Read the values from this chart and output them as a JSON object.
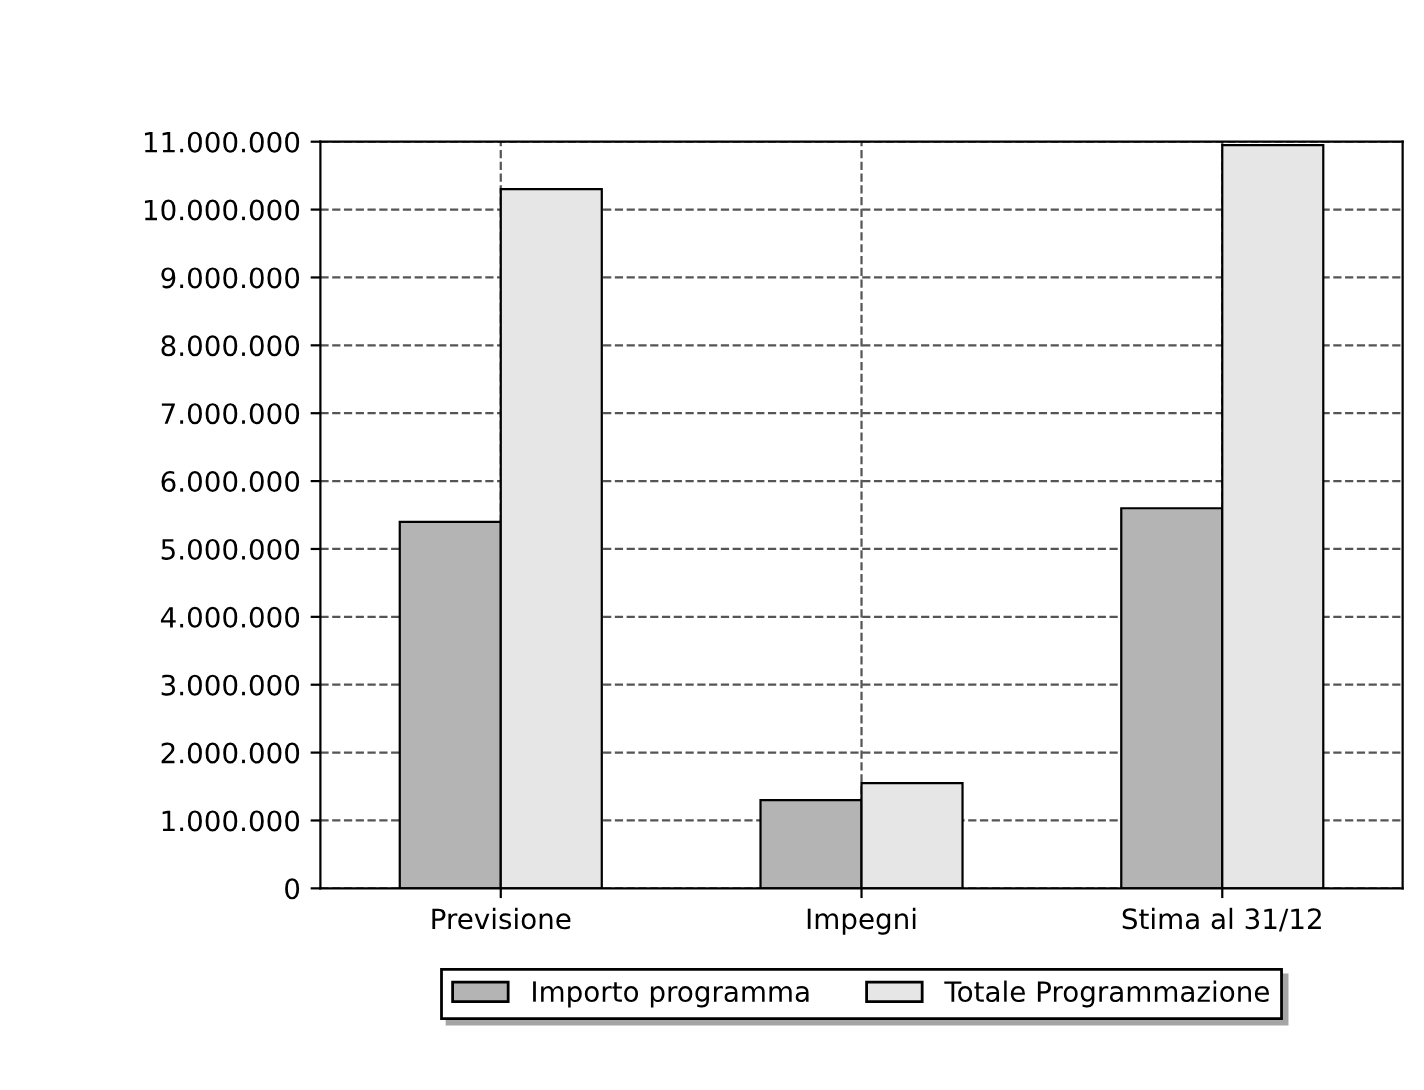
{
  "chart_data": {
    "type": "bar",
    "categories": [
      "Previsione",
      "Impegni",
      "Stima al 31/12"
    ],
    "series": [
      {
        "name": "Importo programma",
        "color": "#b4b4b4",
        "values": [
          5400000,
          1300000,
          5600000
        ]
      },
      {
        "name": "Totale Programmazione",
        "color": "#e6e6e6",
        "values": [
          10300000,
          1550000,
          10950000
        ]
      }
    ],
    "ylim": [
      0,
      11000000
    ],
    "yticks": [
      {
        "value": 0,
        "label": "0"
      },
      {
        "value": 1000000,
        "label": "1.000.000"
      },
      {
        "value": 2000000,
        "label": "2.000.000"
      },
      {
        "value": 3000000,
        "label": "3.000.000"
      },
      {
        "value": 4000000,
        "label": "4.000.000"
      },
      {
        "value": 5000000,
        "label": "5.000.000"
      },
      {
        "value": 6000000,
        "label": "6.000.000"
      },
      {
        "value": 7000000,
        "label": "7.000.000"
      },
      {
        "value": 8000000,
        "label": "8.000.000"
      },
      {
        "value": 9000000,
        "label": "9.000.000"
      },
      {
        "value": 10000000,
        "label": "10.000.000"
      },
      {
        "value": 11000000,
        "label": "11.000.000"
      }
    ],
    "grid": true,
    "legend": "bottom"
  }
}
